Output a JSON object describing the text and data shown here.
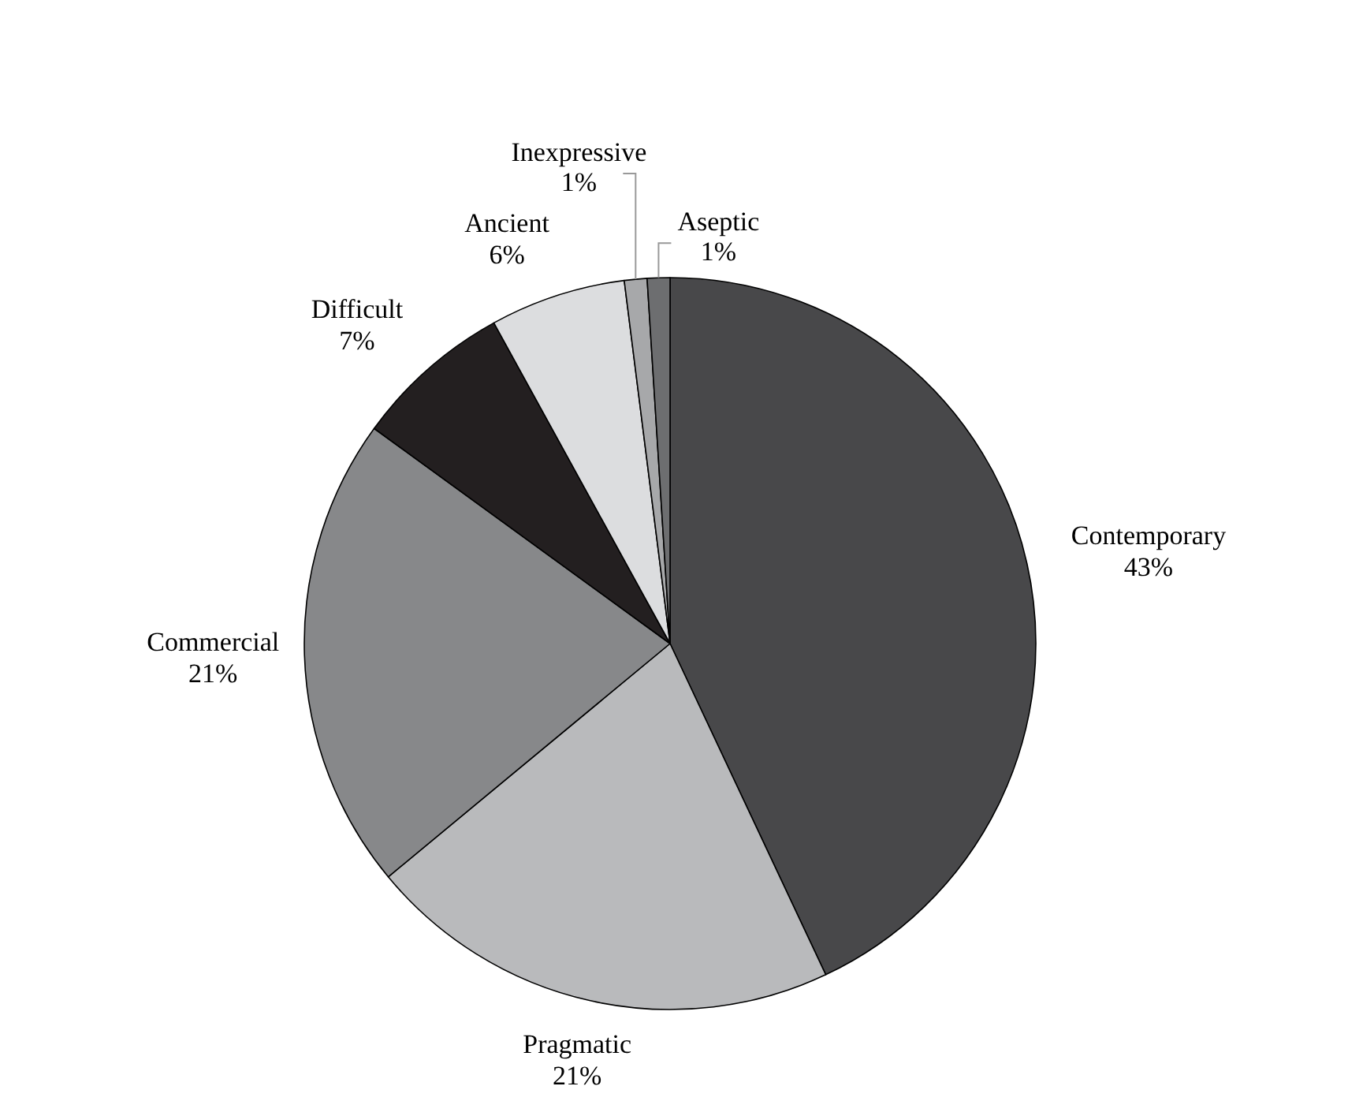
{
  "chart_data": {
    "type": "pie",
    "categories": [
      "Contemporary",
      "Pragmatic",
      "Commercial",
      "Difficult",
      "Ancient",
      "Inexpressive",
      "Aseptic"
    ],
    "values": [
      43,
      21,
      21,
      7,
      6,
      1,
      1
    ],
    "value_labels": [
      "43%",
      "21%",
      "21%",
      "7%",
      "6%",
      "1%",
      "1%"
    ],
    "colors": [
      "#48484a",
      "#b9babc",
      "#87888a",
      "#231f20",
      "#dcdddf",
      "#a7a8aa",
      "#6d6e70"
    ]
  }
}
